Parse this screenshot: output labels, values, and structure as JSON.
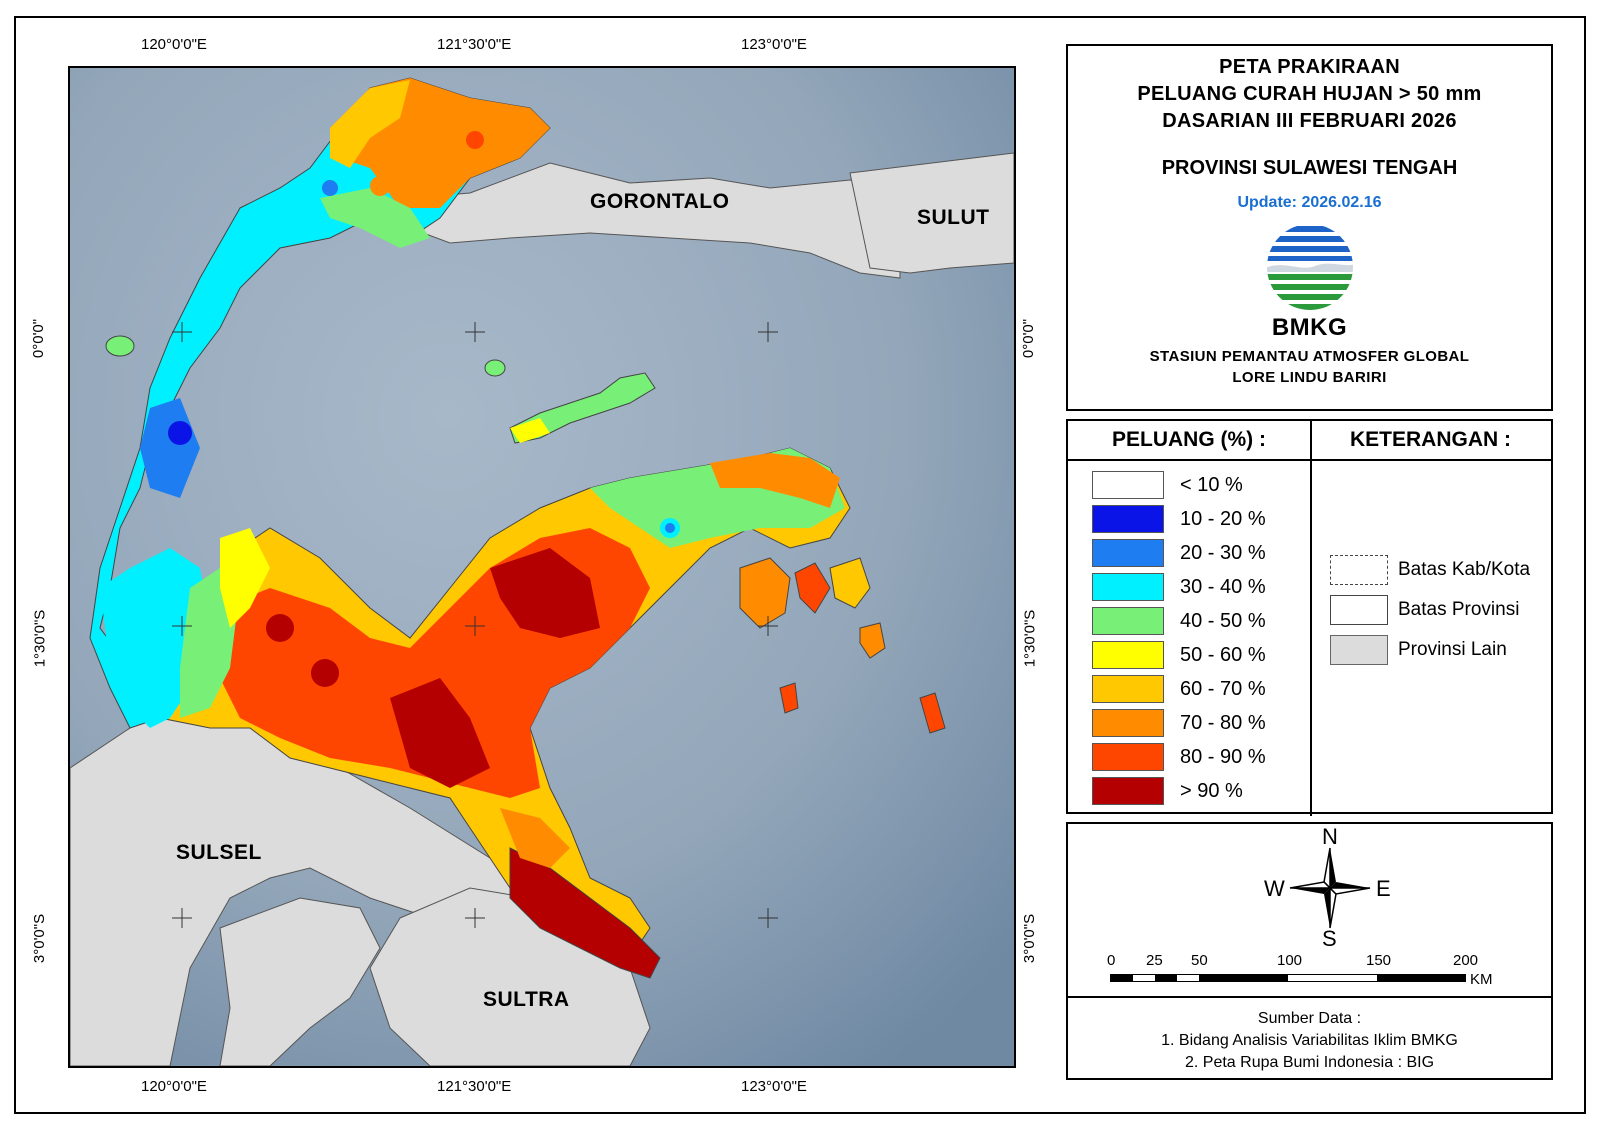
{
  "map": {
    "coords_top": [
      "120°0'0\"E",
      "121°30'0\"E",
      "123°0'0\"E"
    ],
    "coords_bottom": [
      "120°0'0\"E",
      "121°30'0\"E",
      "123°0'0\"E"
    ],
    "coords_left": [
      "0°0'0\"",
      "1°30'0\"S",
      "3°0'0\"S"
    ],
    "coords_right": [
      "0°0'0\"",
      "1°30'0\"S",
      "3°0'0\"S"
    ],
    "region_labels": {
      "gorontalo": "GORONTALO",
      "sulut": "SULUT",
      "sulsel": "SULSEL",
      "sultra": "SULTRA"
    }
  },
  "title": {
    "line1": "PETA PRAKIRAAN",
    "line2": "PELUANG CURAH HUJAN > 50 mm",
    "line3": "DASARIAN III FEBRUARI 2026",
    "province": "PROVINSI SULAWESI TENGAH",
    "update": "Update: 2026.02.16",
    "logo_text": "BMKG",
    "station_line1": "STASIUN PEMANTAU ATMOSFER GLOBAL",
    "station_line2": "LORE LINDU BARIRI"
  },
  "legend": {
    "peluang_title": "PELUANG (%) :",
    "keterangan_title": "KETERANGAN :",
    "classes": [
      {
        "label": "< 10 %",
        "color": "#ffffff"
      },
      {
        "label": "10 - 20 %",
        "color": "#0a14e6"
      },
      {
        "label": "20 - 30 %",
        "color": "#1e7df0"
      },
      {
        "label": "30 - 40 %",
        "color": "#00f0ff"
      },
      {
        "label": "40 - 50 %",
        "color": "#78f078"
      },
      {
        "label": "50 - 60 %",
        "color": "#ffff00"
      },
      {
        "label": "60 - 70 %",
        "color": "#ffc800"
      },
      {
        "label": "70 - 80 %",
        "color": "#ff8c00"
      },
      {
        "label": "80 - 90 %",
        "color": "#ff4600"
      },
      {
        "label": "> 90 %",
        "color": "#b40000"
      }
    ],
    "keterangan": {
      "kab": "Batas Kab/Kota",
      "prov": "Batas Provinsi",
      "lain": "Provinsi Lain"
    }
  },
  "compass": {
    "n": "N",
    "s": "S",
    "e": "E",
    "w": "W"
  },
  "scale": {
    "ticks": [
      "0",
      "25",
      "50",
      "100",
      "150",
      "200"
    ],
    "unit": "KM"
  },
  "source": {
    "title": "Sumber Data :",
    "line1": "1. Bidang Analisis Variabilitas Iklim BMKG",
    "line2": "2. Peta Rupa Bumi Indonesia : BIG"
  }
}
